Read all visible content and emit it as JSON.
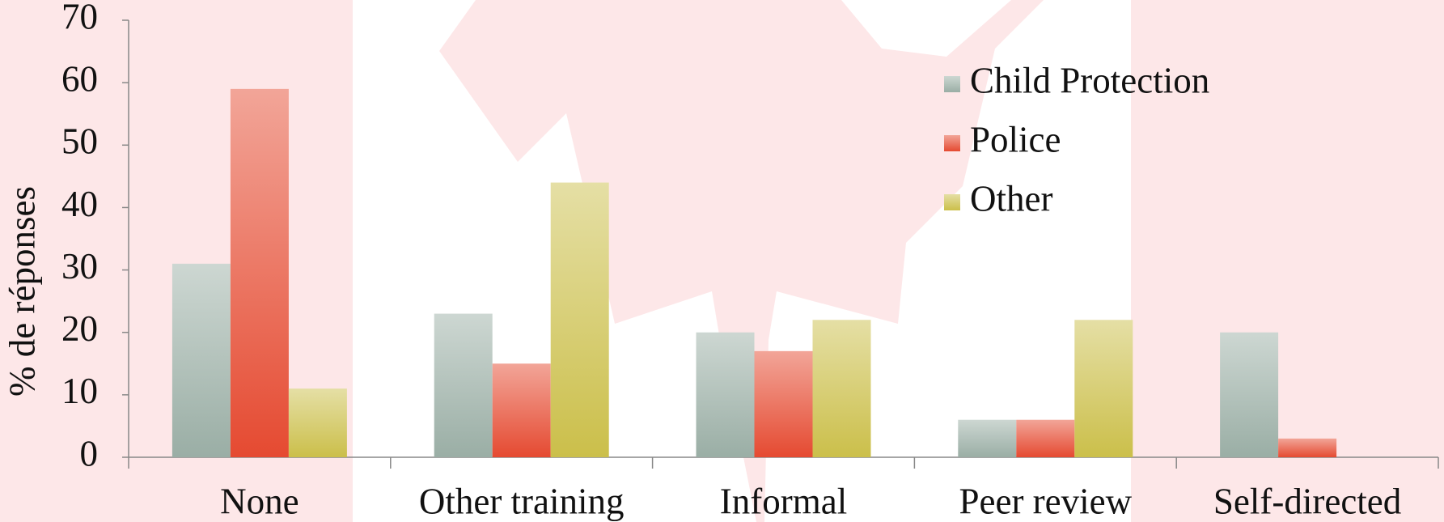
{
  "chart_data": {
    "type": "bar",
    "y_label": "% de réponses",
    "categories": [
      "None",
      "Other training",
      "Informal",
      "Peer review",
      "Self-directed"
    ],
    "series": [
      {
        "name": "Child Protection",
        "color": "#9aaea5",
        "values": [
          31,
          23,
          20,
          6,
          20
        ]
      },
      {
        "name": "Police",
        "color": "#e54a31",
        "values": [
          59,
          15,
          17,
          6,
          3
        ]
      },
      {
        "name": "Other",
        "color": "#cbbf4a",
        "values": [
          11,
          44,
          22,
          22,
          0
        ]
      }
    ],
    "ylim": [
      0,
      70
    ],
    "yticks": [
      0,
      10,
      20,
      30,
      40,
      50,
      60,
      70
    ],
    "grid": false,
    "legend": "top-right"
  }
}
